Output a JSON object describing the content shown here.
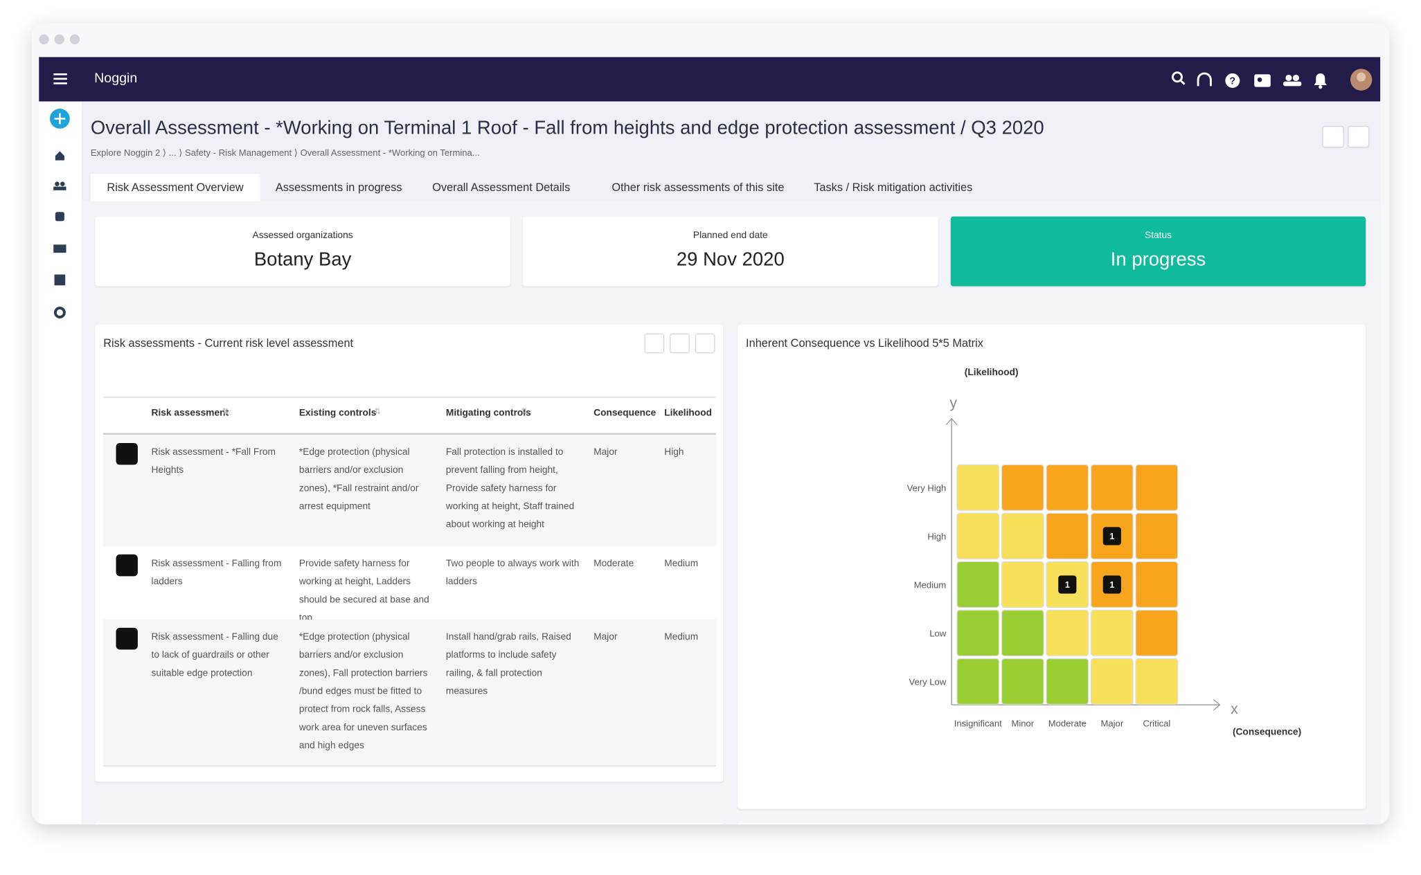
{
  "header": {
    "app_name": "Noggin"
  },
  "page": {
    "title": "Overall Assessment - *Working on Terminal 1 Roof - Fall from heights and edge protection assessment / Q3 2020",
    "breadcrumb": [
      "Explore Noggin 2",
      "...",
      "Safety - Risk Management",
      "Overall Assessment - *Working on Termina..."
    ]
  },
  "tabs": [
    "Risk Assessment Overview",
    "Assessments in progress",
    "Overall Assessment Details",
    "Other risk assessments of this site",
    "Tasks / Risk mitigation activities"
  ],
  "active_tab": 0,
  "summary": [
    {
      "label": "Assessed organizations",
      "value": "Botany Bay"
    },
    {
      "label": "Planned end date",
      "value": "29 Nov 2020"
    },
    {
      "label": "Status",
      "value": "In progress",
      "color": "#0fbb9b"
    }
  ],
  "table": {
    "title": "Risk assessments - Current risk level assessment",
    "columns": [
      "Risk assessment",
      "Existing controls",
      "Mitigating controls",
      "Consequence",
      "Likelihood"
    ],
    "rows": [
      [
        "Risk assessment - *Fall From Heights",
        "*Edge protection (physical barriers and/or exclusion zones), *Fall restraint and/or arrest equipment",
        "Fall protection is installed to prevent falling from height, Provide safety harness for working at height, Staff trained about working at height",
        "Major",
        "High"
      ],
      [
        "Risk assessment - Falling from ladders",
        "Provide safety harness for working at height, Ladders should be secured at base and top",
        "Two people to always work with ladders",
        "Moderate",
        "Medium"
      ],
      [
        "Risk assessment - Falling due to lack of guardrails or other suitable edge protection",
        "*Edge protection (physical barriers and/or exclusion zones), Fall protection barriers /bund edges must be fitted to protect from rock falls, Assess work area for uneven surfaces and high edges",
        "Install hand/grab rails, Raised platforms to include safety railing, & fall protection measures",
        "Major",
        "Medium"
      ]
    ]
  },
  "matrix": {
    "title": "Inherent Consequence vs Likelihood 5*5 Matrix",
    "y_axis_label": "(Likelihood)",
    "x_axis_label": "(Consequence)",
    "y_letter": "y",
    "x_letter": "x",
    "rows": [
      "Very High",
      "High",
      "Medium",
      "Low",
      "Very Low"
    ],
    "columns": [
      "Insignificant",
      "Minor",
      "Moderate",
      "Major",
      "Critical"
    ],
    "colors": [
      [
        "#f9e05a",
        "#f7a51c",
        "#f7a51c",
        "#f7a51c",
        "#f7a51c"
      ],
      [
        "#f9e05a",
        "#f9e05a",
        "#f7a51c",
        "#f7a51c",
        "#f7a51c"
      ],
      [
        "#9acd32",
        "#f9e05a",
        "#f9e05a",
        "#f7a51c",
        "#f7a51c"
      ],
      [
        "#9acd32",
        "#9acd32",
        "#f9e05a",
        "#f9e05a",
        "#f7a51c"
      ],
      [
        "#9acd32",
        "#9acd32",
        "#9acd32",
        "#f9e05a",
        "#f9e05a"
      ]
    ],
    "counts": [
      [
        null,
        null,
        null,
        null,
        null
      ],
      [
        null,
        null,
        null,
        1,
        null
      ],
      [
        null,
        null,
        1,
        1,
        null
      ],
      [
        null,
        null,
        null,
        null,
        null
      ],
      [
        null,
        null,
        null,
        null,
        null
      ]
    ]
  }
}
